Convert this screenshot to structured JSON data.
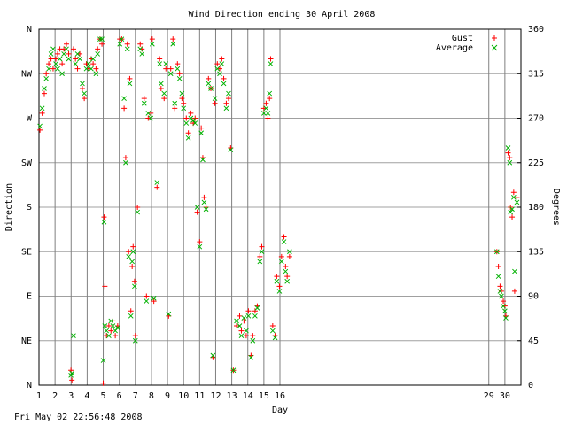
{
  "chart_data": {
    "type": "scatter",
    "title": "Wind Direction ending 30 April 2008",
    "x_label": "Day",
    "y_label": "Direction",
    "y2_label": "Degrees",
    "footer": "Fri May 02 22:56:48 2008",
    "xlim": [
      1,
      31
    ],
    "xticks": [
      1,
      2,
      3,
      4,
      5,
      6,
      7,
      8,
      9,
      10,
      11,
      12,
      13,
      14,
      15,
      16,
      29,
      30
    ],
    "ylim": [
      0,
      360
    ],
    "yticks": [
      {
        "value": 0,
        "label": "N"
      },
      {
        "value": 45,
        "label": "NE"
      },
      {
        "value": 90,
        "label": "E"
      },
      {
        "value": 135,
        "label": "SE"
      },
      {
        "value": 180,
        "label": "S"
      },
      {
        "value": 225,
        "label": "SW"
      },
      {
        "value": 270,
        "label": "W"
      },
      {
        "value": 315,
        "label": "NW"
      },
      {
        "value": 360,
        "label": "N"
      }
    ],
    "y2lim": [
      0,
      360
    ],
    "y2ticks": [
      0,
      45,
      90,
      135,
      180,
      225,
      270,
      315,
      360
    ],
    "grid": true,
    "legend": "top-right",
    "x": [
      1.06,
      1.2,
      1.33,
      1.45,
      1.61,
      1.75,
      1.88,
      2.05,
      2.16,
      2.3,
      2.44,
      2.55,
      2.71,
      2.85,
      2.99,
      3.05,
      3.15,
      3.27,
      3.4,
      3.54,
      3.7,
      3.82,
      3.95,
      4.09,
      4.25,
      4.37,
      4.55,
      4.65,
      4.8,
      4.92,
      5.0,
      5.05,
      5.1,
      5.2,
      5.35,
      5.48,
      5.6,
      5.75,
      5.9,
      6.03,
      6.15,
      6.3,
      6.4,
      6.5,
      6.58,
      6.65,
      6.72,
      6.8,
      6.86,
      6.95,
      7.0,
      7.13,
      7.3,
      7.41,
      7.55,
      7.69,
      7.8,
      7.96,
      8.05,
      8.15,
      8.35,
      8.51,
      8.6,
      8.79,
      8.9,
      9.07,
      9.2,
      9.34,
      9.45,
      9.62,
      9.75,
      9.9,
      10,
      10.17,
      10.3,
      10.45,
      10.6,
      10.72,
      10.85,
      11,
      11.1,
      11.2,
      11.28,
      11.4,
      11.55,
      11.7,
      11.83,
      11.95,
      12.1,
      12.25,
      12.38,
      12.5,
      12.66,
      12.8,
      12.93,
      13.1,
      13.3,
      13.49,
      13.6,
      13.76,
      13.9,
      14.04,
      14.2,
      14.31,
      14.45,
      14.59,
      14.75,
      14.87,
      15,
      15.14,
      15.25,
      15.35,
      15.42,
      15.55,
      15.7,
      15.8,
      15.97,
      16.1,
      16.25,
      16.35,
      16.45,
      16.6,
      29.5,
      29.6,
      29.7,
      29.78,
      29.9,
      30,
      30.06,
      30.2,
      30.3,
      30.35,
      30.45,
      30.55,
      30.61,
      30.75
    ],
    "series": [
      {
        "name": "Gust",
        "color": "#ff0000",
        "marker": "plus",
        "values": [
          258,
          275,
          295,
          315,
          325,
          330,
          320,
          330,
          335,
          340,
          325,
          340,
          345,
          335,
          15,
          5,
          340,
          330,
          320,
          335,
          300,
          290,
          325,
          320,
          330,
          325,
          320,
          340,
          350,
          345,
          2,
          170,
          100,
          50,
          60,
          55,
          65,
          50,
          60,
          350,
          350,
          280,
          230,
          345,
          135,
          310,
          75,
          120,
          140,
          105,
          50,
          180,
          345,
          340,
          290,
          90,
          270,
          275,
          350,
          85,
          200,
          330,
          300,
          290,
          320,
          70,
          320,
          350,
          280,
          325,
          315,
          290,
          285,
          270,
          255,
          275,
          265,
          270,
          175,
          145,
          260,
          230,
          190,
          180,
          310,
          300,
          28,
          285,
          325,
          320,
          330,
          310,
          285,
          290,
          240,
          15,
          60,
          70,
          55,
          65,
          50,
          75,
          30,
          50,
          75,
          80,
          130,
          140,
          280,
          285,
          270,
          290,
          330,
          60,
          50,
          110,
          100,
          130,
          150,
          120,
          110,
          130,
          135,
          120,
          100,
          95,
          85,
          80,
          70,
          235,
          230,
          180,
          170,
          195,
          95,
          190
        ]
      },
      {
        "name": "Average",
        "color": "#00b000",
        "marker": "cross",
        "values": [
          262,
          280,
          300,
          310,
          320,
          335,
          340,
          325,
          320,
          330,
          315,
          335,
          340,
          330,
          10,
          12,
          50,
          325,
          335,
          330,
          305,
          295,
          320,
          325,
          320,
          330,
          315,
          335,
          350,
          350,
          25,
          165,
          60,
          55,
          50,
          65,
          60,
          55,
          58,
          345,
          350,
          290,
          225,
          340,
          130,
          305,
          70,
          125,
          135,
          100,
          45,
          175,
          340,
          335,
          285,
          85,
          275,
          270,
          345,
          88,
          205,
          325,
          305,
          295,
          325,
          72,
          315,
          345,
          285,
          320,
          310,
          295,
          280,
          265,
          250,
          270,
          268,
          265,
          180,
          140,
          255,
          228,
          185,
          178,
          305,
          300,
          30,
          290,
          320,
          315,
          325,
          305,
          280,
          295,
          238,
          15,
          65,
          60,
          50,
          68,
          55,
          70,
          28,
          45,
          70,
          78,
          125,
          135,
          275,
          280,
          275,
          295,
          325,
          55,
          48,
          105,
          95,
          125,
          145,
          115,
          105,
          135,
          135,
          110,
          95,
          90,
          80,
          75,
          68,
          240,
          225,
          175,
          178,
          190,
          115,
          185
        ]
      }
    ]
  }
}
